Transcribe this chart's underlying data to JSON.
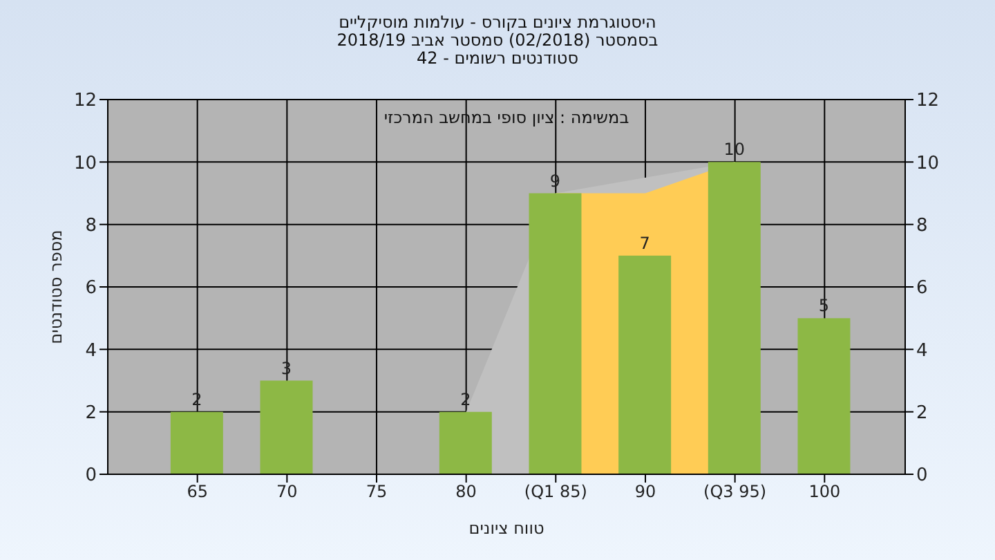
{
  "chart_data": {
    "type": "bar",
    "title": "היסטוגרמת ציונים בקורס - עולמות מוסיקליים",
    "subtitle": "בסמסטר  (02/2018)  סמסטר אביב 2018/19\nסטודנטים רשומים - 42",
    "xlabel": "טווח ציונים",
    "ylabel": "מספר סטודנטים",
    "annotations": [
      "במשימה : ציון סופי במחשב המרכזי"
    ],
    "categories": [
      "65",
      "70",
      "75",
      "80",
      "(Q1 85)",
      "90",
      "(Q3 95)",
      "100"
    ],
    "series": [
      {
        "type": "area",
        "color": "#c0c0c0",
        "values": [
          null,
          null,
          null,
          2,
          9,
          null,
          10,
          null
        ]
      },
      {
        "type": "area",
        "color": "#ffcc55",
        "values": [
          null,
          null,
          null,
          null,
          9,
          9,
          10,
          null
        ]
      },
      {
        "color": "#8db845",
        "values": [
          2,
          3,
          null,
          2,
          9,
          7,
          10,
          5
        ],
        "value_labels": [
          "2",
          "3",
          null,
          "2",
          "9",
          "7",
          "10",
          "5"
        ]
      }
    ],
    "ylim": [
      0,
      12
    ],
    "yticks": [
      0,
      2,
      4,
      6,
      8,
      10,
      12
    ],
    "y2lim": [
      0,
      12
    ],
    "y2ticks": [
      0,
      2,
      4,
      6,
      8,
      10,
      12
    ],
    "grid": true,
    "legend": false
  }
}
